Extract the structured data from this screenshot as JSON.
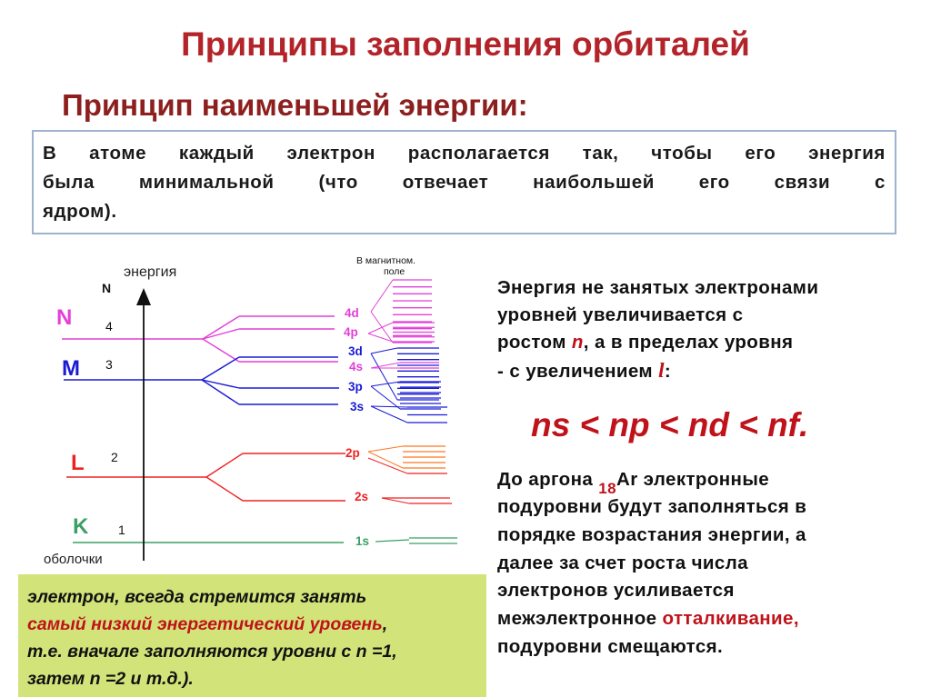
{
  "title": "Принципы заполнения орбиталей",
  "subtitle": "Принцип наименьшей энергии:",
  "rule_box": {
    "lines": [
      "В атоме каждый электрон располагается так, чтобы его энергия",
      "была минимальной (что отвечает наибольшей его связи с",
      "ядром)."
    ]
  },
  "diagram": {
    "axis_label": "энергия",
    "n_header": "N",
    "magnetic_label_1": "В магнитном.",
    "magnetic_label_2": "поле",
    "shells_label": "оболочки",
    "shells": [
      {
        "letter": "N",
        "n": "4",
        "color": "#e43fd6"
      },
      {
        "letter": "M",
        "n": "3",
        "color": "#1a1ad6"
      },
      {
        "letter": "L",
        "n": "2",
        "color": "#ee2222"
      },
      {
        "letter": "K",
        "n": "1",
        "color": "#3aa063"
      }
    ],
    "sublevels": [
      {
        "label": "4d",
        "color": "#e43fd6"
      },
      {
        "label": "4p",
        "color": "#e43fd6"
      },
      {
        "label": "3d",
        "color": "#1a1ad6"
      },
      {
        "label": "4s",
        "color": "#e43fd6"
      },
      {
        "label": "3p",
        "color": "#1a1ad6"
      },
      {
        "label": "3s",
        "color": "#1a1ad6"
      },
      {
        "label": "2p",
        "color": "#ee2222"
      },
      {
        "label": "2s",
        "color": "#ee2222"
      },
      {
        "label": "1s",
        "color": "#3aa063"
      }
    ]
  },
  "right_text": {
    "p1": [
      "Энергия  не  занятых электронами",
      "уровней  увеличивается  с"
    ],
    "p1_l3_a": "ростом  ",
    "p1_l3_n": "n",
    "p1_l3_b": ",  а  в  пределах  уровня",
    "p1_l4_a": "-  с    увеличением   ",
    "p1_l4_l": "l",
    "p1_l4_b": ":",
    "formula": "ns < np < nd < nf.",
    "p2_l1_a": "До  аргона  ",
    "p2_l1_sub": "18",
    "p2_l1_b": "Ar  электронные",
    "p2_lines": [
      "подуровни  будут  заполняться  в",
      "порядке  возрастания  энергии,  а",
      "далее  за  счет  роста  числа",
      "электронов  усиливается"
    ],
    "p2_l6_a": "межэлектронное  ",
    "p2_l6_red": "отталкивание,",
    "p2_l7": "подуровни  смещаются."
  },
  "green_box": {
    "l1": "электрон, всегда стремится занять",
    "l2_red": "самый низкий энергетический уровень",
    "l2_b": ",",
    "l3": "т.е. вначале заполняются уровни с n =1,",
    "l4": "затем n =2 и т.д.)."
  }
}
